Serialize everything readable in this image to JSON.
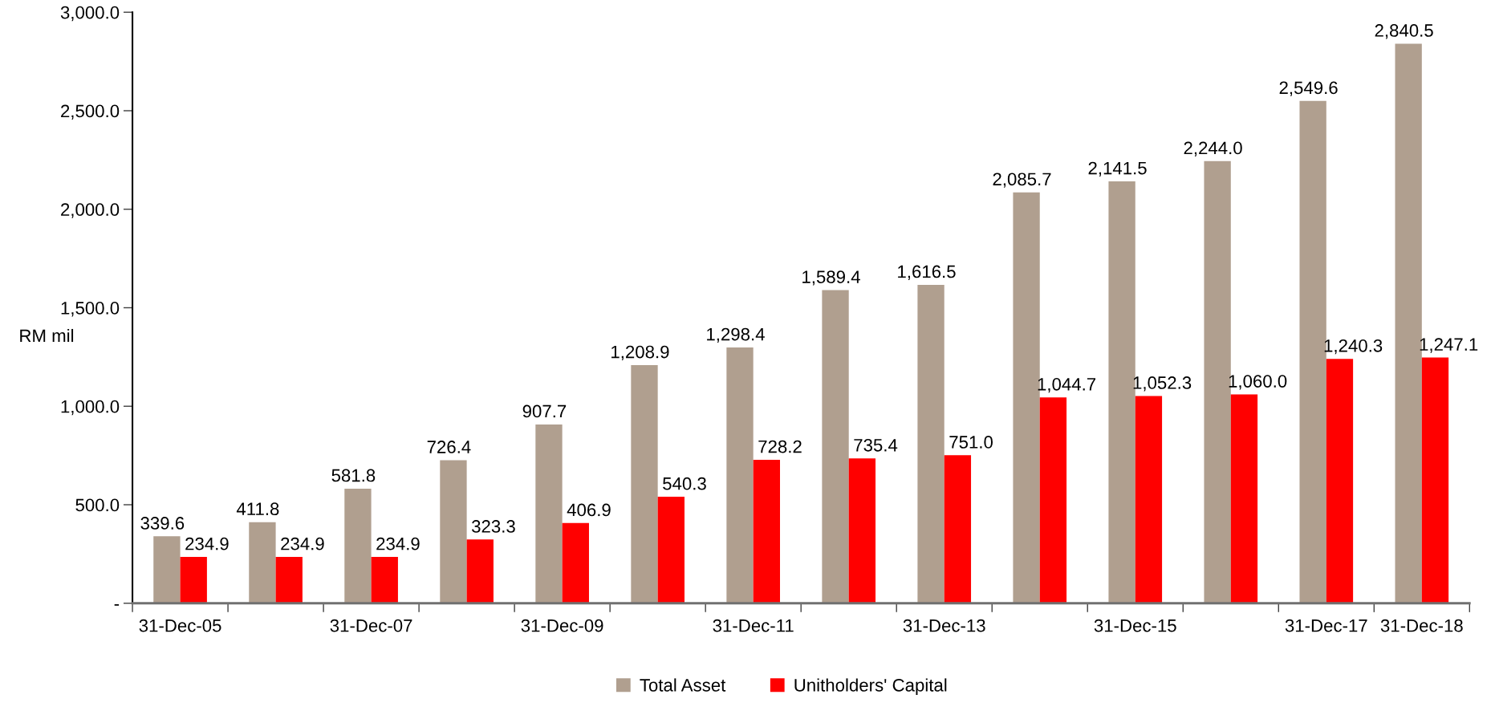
{
  "chart_data": {
    "type": "bar",
    "ylabel": "RM mil",
    "categories": [
      "31-Dec-05",
      null,
      "31-Dec-07",
      null,
      "31-Dec-09",
      null,
      "31-Dec-11",
      null,
      "31-Dec-13",
      null,
      "31-Dec-15",
      null,
      "31-Dec-17",
      "31-Dec-18"
    ],
    "series": [
      {
        "name": "Total Asset",
        "color": "#b09f8f",
        "values": [
          339.6,
          411.8,
          581.8,
          726.4,
          907.7,
          1208.9,
          1298.4,
          1589.4,
          1616.5,
          2085.7,
          2141.5,
          2244.0,
          2549.6,
          2840.5
        ],
        "value_labels": [
          "339.6",
          "411.8",
          "581.8",
          "726.4",
          "907.7",
          "1,208.9",
          "1,298.4",
          "1,589.4",
          "1,616.5",
          "2,085.7",
          "2,141.5",
          "2,244.0",
          "2,549.6",
          "2,840.5"
        ]
      },
      {
        "name": "Unitholders' Capital",
        "color": "#ff0000",
        "values": [
          234.9,
          234.9,
          234.9,
          323.3,
          406.9,
          540.3,
          728.2,
          735.4,
          751.0,
          1044.7,
          1052.3,
          1060.0,
          1240.3,
          1247.1
        ],
        "value_labels": [
          "234.9",
          "234.9",
          "234.9",
          "323.3",
          "406.9",
          "540.3",
          "728.2",
          "735.4",
          "751.0",
          "1,044.7",
          "1,052.3",
          "1,060.0",
          "1,240.3",
          "1,247.1"
        ]
      }
    ],
    "ylim": [
      0,
      3000
    ],
    "yticks": [
      {
        "value": 0,
        "label": "-"
      },
      {
        "value": 500,
        "label": "500.0"
      },
      {
        "value": 1000,
        "label": "1,000.0"
      },
      {
        "value": 1500,
        "label": "1,500.0"
      },
      {
        "value": 2000,
        "label": "2,000.0"
      },
      {
        "value": 2500,
        "label": "2,500.0"
      },
      {
        "value": 3000,
        "label": "3,000.0"
      }
    ],
    "grid": false,
    "legend": "bottom"
  }
}
